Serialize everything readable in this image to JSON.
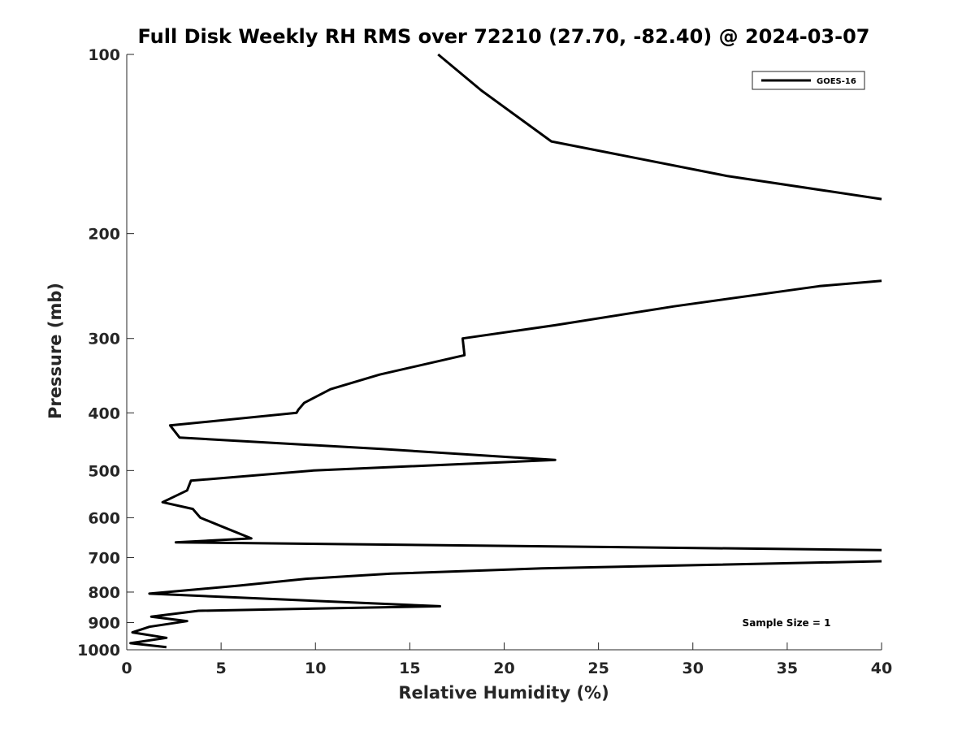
{
  "chart_data": {
    "type": "line",
    "title": "Full Disk Weekly RH RMS over 72210 (27.70, -82.40) @ 2024-03-07",
    "xlabel": "Relative Humidity (%)",
    "ylabel": "Pressure (mb)",
    "xlim": [
      0,
      40
    ],
    "ylim": [
      100,
      1000
    ],
    "yscale": "log",
    "y_reversed": true,
    "grid": false,
    "legend_placement": "top-right",
    "x_ticks": [
      0,
      5,
      10,
      15,
      20,
      25,
      30,
      35,
      40
    ],
    "y_ticks": [
      100,
      200,
      300,
      400,
      500,
      600,
      700,
      800,
      900,
      1000
    ],
    "annotation": "Sample Size = 1",
    "line_color": "#000000",
    "series": [
      {
        "name": "GOES-16",
        "segments": [
          {
            "x": [
              16.5,
              18.8,
              22.5,
              31.8,
              40.0
            ],
            "y": [
              100,
              115,
              140,
              160,
              175
            ]
          },
          {
            "x": [
              40.0,
              36.7,
              29.0,
              22.7,
              17.8,
              17.9,
              13.4,
              10.8,
              9.4,
              9.1,
              9.0,
              2.3,
              2.8,
              13.5,
              22.7,
              9.9,
              3.4,
              3.2,
              1.9,
              3.5,
              3.9,
              5.0,
              6.6,
              2.6,
              40.0
            ],
            "y": [
              240,
              245,
              265,
              285,
              300,
              320,
              345,
              365,
              385,
              395,
              400,
              420,
              440,
              460,
              480,
              500,
              520,
              540,
              565,
              580,
              600,
              620,
              650,
              660,
              680
            ]
          },
          {
            "x": [
              40.0,
              31.0,
              22.0,
              14.0,
              9.5,
              6.0,
              1.2,
              9.0,
              16.6,
              3.8,
              1.3,
              3.2,
              1.2,
              0.3,
              2.1,
              0.2,
              2.1
            ],
            "y": [
              710,
              720,
              730,
              745,
              760,
              780,
              805,
              825,
              845,
              860,
              880,
              895,
              915,
              935,
              955,
              975,
              990
            ]
          }
        ]
      }
    ]
  }
}
